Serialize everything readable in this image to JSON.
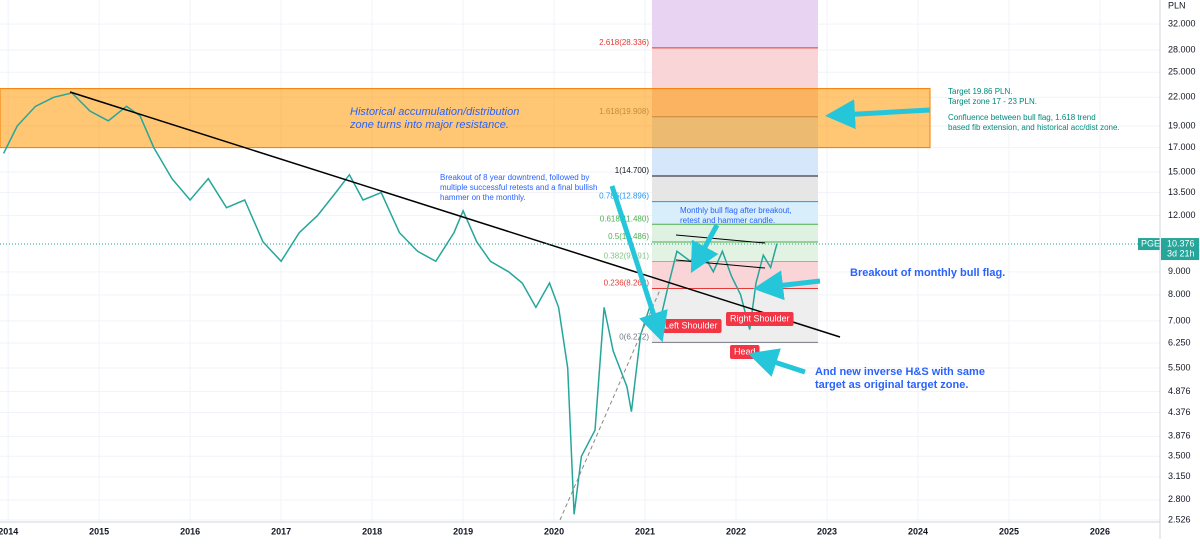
{
  "header": {
    "currency": "PLN",
    "symbol": "PGE",
    "last_price": 10.376,
    "countdown": "3d 21h"
  },
  "chart_data": {
    "type": "line",
    "color": "#26a69a",
    "log_scale": true,
    "grid": true,
    "x": [
      2013.95,
      2014.1,
      2014.3,
      2014.5,
      2014.7,
      2014.9,
      2015.1,
      2015.3,
      2015.45,
      2015.6,
      2015.8,
      2016.0,
      2016.2,
      2016.4,
      2016.6,
      2016.8,
      2017.0,
      2017.2,
      2017.4,
      2017.6,
      2017.75,
      2017.9,
      2018.1,
      2018.3,
      2018.5,
      2018.7,
      2018.9,
      2019.0,
      2019.15,
      2019.3,
      2019.5,
      2019.65,
      2019.8,
      2019.95,
      2020.05,
      2020.15,
      2020.22,
      2020.3,
      2020.45,
      2020.55,
      2020.65,
      2020.8,
      2020.85,
      2020.95,
      2021.05,
      2021.15,
      2021.25,
      2021.35,
      2021.5,
      2021.6,
      2021.75,
      2021.85,
      2021.95,
      2022.05,
      2022.15,
      2022.22,
      2022.3,
      2022.38,
      2022.45
    ],
    "values": [
      16.5,
      19,
      21,
      22,
      22.5,
      20.5,
      19.5,
      21,
      20,
      17,
      14.5,
      13,
      14.5,
      12.5,
      13,
      10.5,
      9.5,
      11,
      12,
      13.5,
      14.8,
      13,
      13.5,
      11,
      10,
      9.5,
      11,
      12.3,
      10.5,
      9.5,
      9,
      8.5,
      7.5,
      8.5,
      7.5,
      5.5,
      2.6,
      3.5,
      4,
      7.5,
      6,
      5,
      4.4,
      6.5,
      7.5,
      6.8,
      8.3,
      10,
      9.5,
      10.2,
      9,
      10,
      8.8,
      8,
      6.7,
      8.5,
      9.8,
      9.2,
      10.4
    ],
    "xlim": [
      2013.91,
      2026.66
    ],
    "ylim": [
      2.5,
      36.2
    ],
    "xticks": [
      2014,
      2015,
      2016,
      2017,
      2018,
      2019,
      2020,
      2021,
      2022,
      2023,
      2024,
      2025,
      2026
    ],
    "yticks": [
      {
        "value": 32,
        "label": "32.000"
      },
      {
        "value": 28,
        "label": "28.000"
      },
      {
        "value": 25,
        "label": "25.000"
      },
      {
        "value": 22,
        "label": "22.000"
      },
      {
        "value": 19,
        "label": "19.000"
      },
      {
        "value": 17,
        "label": "17.000"
      },
      {
        "value": 15,
        "label": "15.000"
      },
      {
        "value": 13.5,
        "label": "13.500"
      },
      {
        "value": 12,
        "label": "12.000"
      },
      {
        "value": 9,
        "label": "9.000"
      },
      {
        "value": 8,
        "label": "8.000"
      },
      {
        "value": 7,
        "label": "7.000"
      },
      {
        "value": 6.25,
        "label": "6.250"
      },
      {
        "value": 5.5,
        "label": "5.500"
      },
      {
        "value": 4.876,
        "label": "4.876"
      },
      {
        "value": 4.376,
        "label": "4.376"
      },
      {
        "value": 3.876,
        "label": "3.876"
      },
      {
        "value": 3.5,
        "label": "3.500"
      },
      {
        "value": 3.15,
        "label": "3.150"
      },
      {
        "value": 2.8,
        "label": "2.800"
      },
      {
        "value": 2.526,
        "label": "2.526"
      }
    ],
    "resistance_zone": [
      17,
      23
    ],
    "fib_levels": [
      {
        "price": 28.336,
        "label": "2.618(28.336)",
        "color": "#e53935"
      },
      {
        "price": 19.908,
        "label": "1.618(19.908)",
        "color": "#787b86"
      },
      {
        "price": 14.7,
        "label": "1(14.700)",
        "color": "#131722"
      },
      {
        "price": 12.896,
        "label": "0.786(12.896)",
        "color": "#2196f3"
      },
      {
        "price": 11.48,
        "label": "0.618(11.480)",
        "color": "#4caf50"
      },
      {
        "price": 10.486,
        "label": "0.5(10.486)",
        "color": "#4caf50"
      },
      {
        "price": 9.491,
        "label": "0.382(9.491)",
        "color": "#81c784"
      },
      {
        "price": 8.262,
        "label": "0.236(8.262)",
        "color": "#e53935"
      },
      {
        "price": 6.272,
        "label": "0(6.272)",
        "color": "#787b86"
      }
    ],
    "annotations": [
      {
        "lines": [
          "Historical accumulation/distribution",
          "zone turns into major resistance."
        ]
      },
      {
        "lines": [
          "Target 19.86 PLN.",
          "Target zone 17 - 23 PLN."
        ]
      },
      {
        "lines": [
          "Confluence between bull flag, 1.618 trend",
          "based fib extension, and historical acc/dist zone."
        ]
      },
      {
        "lines": [
          "Breakout of 8 year downtrend, followed by",
          "multiple successful retests and a final bullish",
          "hammer on the monthly."
        ]
      },
      {
        "lines": [
          "Monthly bull flag after breakout,",
          "retest and hammer candle."
        ]
      },
      {
        "lines": [
          "Breakout of monthly bull flag."
        ]
      },
      {
        "lines": [
          "And new inverse H&S with same",
          "target as original target zone."
        ]
      }
    ],
    "pattern_labels": [
      "Left Shoulder",
      "Head",
      "Right Shoulder"
    ]
  }
}
